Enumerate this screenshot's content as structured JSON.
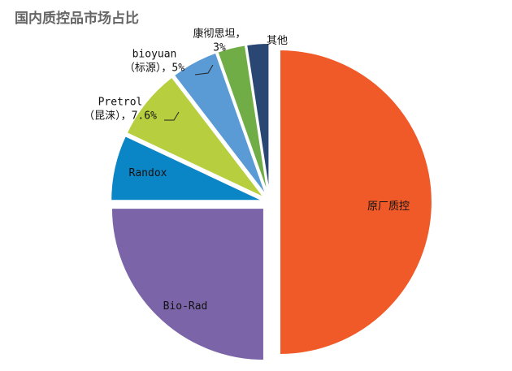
{
  "chart_data": {
    "type": "pie",
    "title": "国内质控品市场占比",
    "slices": [
      {
        "name": "原厂质控",
        "value": 50.0,
        "color": "#F05A28",
        "label_lines": [
          "原厂质控"
        ]
      },
      {
        "name": "Bio-Rad",
        "value": 25.0,
        "color": "#7B65A8",
        "label_lines": [
          "Bio-Rad"
        ]
      },
      {
        "name": "Randox",
        "value": 7.0,
        "color": "#0A86C6",
        "label_lines": [
          "Randox"
        ]
      },
      {
        "name": "Pretrol（昆涞）",
        "value": 7.6,
        "color": "#B7CF3F",
        "label_lines": [
          "Pretrol",
          "（昆涞），7.6%"
        ]
      },
      {
        "name": "bioyuan（标源）",
        "value": 5.0,
        "color": "#5B9BD5",
        "label_lines": [
          "bioyuan",
          "（标源），5%"
        ]
      },
      {
        "name": "康彻思坦",
        "value": 3.0,
        "color": "#70AD47",
        "label_lines": [
          "康彻思坦，",
          "3%"
        ]
      },
      {
        "name": "其他",
        "value": 2.4,
        "color": "#2A4673",
        "label_lines": [
          "其他"
        ]
      }
    ],
    "start_angle_deg": 0,
    "direction": "clockwise",
    "legend": "none"
  }
}
